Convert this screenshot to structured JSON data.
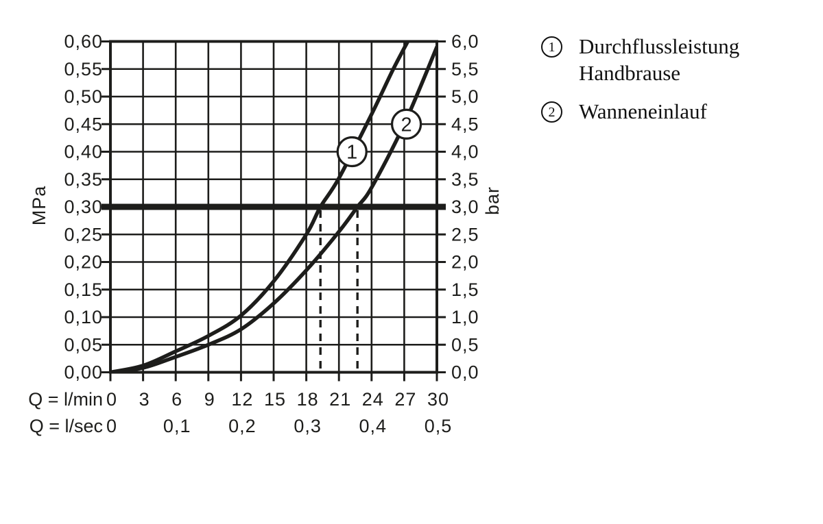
{
  "legend": {
    "items": [
      {
        "symbol": "1",
        "line1": "Durchflussleistung",
        "line2": "Handbrause"
      },
      {
        "symbol": "2",
        "line1": "Wanneneinlauf",
        "line2": ""
      }
    ]
  },
  "chart_data": {
    "type": "line",
    "title": "",
    "grid": true,
    "x_axis": {
      "primary_label": "Q = l/min",
      "primary_ticks": [
        "0",
        "3",
        "6",
        "9",
        "12",
        "15",
        "18",
        "21",
        "24",
        "27",
        "30"
      ],
      "primary_tick_values_lmin": [
        0,
        3,
        6,
        9,
        12,
        15,
        18,
        21,
        24,
        27,
        30
      ],
      "secondary_label": "Q = l/sec",
      "secondary_ticks": [
        "0",
        "0,1",
        "0,2",
        "0,3",
        "0,4",
        "0,5"
      ],
      "secondary_tick_values_lmin": [
        0,
        6,
        12,
        18,
        24,
        30
      ],
      "range_lmin": [
        0,
        30
      ]
    },
    "y_axis_left": {
      "unit": "MPa",
      "ticks": [
        "0,60",
        "0,55",
        "0,50",
        "0,45",
        "0,40",
        "0,35",
        "0,30",
        "0,25",
        "0,20",
        "0,15",
        "0,10",
        "0,05",
        "0,00"
      ],
      "tick_values_mpa": [
        0.6,
        0.55,
        0.5,
        0.45,
        0.4,
        0.35,
        0.3,
        0.25,
        0.2,
        0.15,
        0.1,
        0.05,
        0.0
      ],
      "range_mpa": [
        0,
        0.6
      ]
    },
    "y_axis_right": {
      "unit": "bar",
      "ticks": [
        "6,0",
        "5,5",
        "5,0",
        "4,5",
        "4,0",
        "3,5",
        "3,0",
        "2,5",
        "2,0",
        "1,5",
        "1,0",
        "0,5",
        "0,0"
      ],
      "range_bar": [
        0,
        6
      ]
    },
    "series": [
      {
        "name": "Durchflussleistung Handbrause",
        "marker": "1",
        "marker_at": {
          "q_lmin": 22.2,
          "p_mpa": 0.4
        },
        "points_lmin_mpa": [
          [
            0,
            0
          ],
          [
            3,
            0.012
          ],
          [
            6,
            0.038
          ],
          [
            9,
            0.066
          ],
          [
            12,
            0.103
          ],
          [
            15,
            0.165
          ],
          [
            18,
            0.25
          ],
          [
            19.3,
            0.3
          ],
          [
            21,
            0.352
          ],
          [
            24,
            0.468
          ],
          [
            26,
            0.55
          ],
          [
            27.6,
            0.61
          ]
        ]
      },
      {
        "name": "Wanneneinlauf",
        "marker": "2",
        "marker_at": {
          "q_lmin": 27.2,
          "p_mpa": 0.45
        },
        "points_lmin_mpa": [
          [
            0,
            0
          ],
          [
            3,
            0.008
          ],
          [
            6,
            0.028
          ],
          [
            9,
            0.05
          ],
          [
            12,
            0.078
          ],
          [
            15,
            0.125
          ],
          [
            18,
            0.185
          ],
          [
            21,
            0.255
          ],
          [
            22.7,
            0.3
          ],
          [
            24,
            0.335
          ],
          [
            27,
            0.45
          ],
          [
            30,
            0.59
          ]
        ]
      }
    ],
    "reference_line_mpa": 0.3,
    "dashed_guides_lmin": [
      19.3,
      22.7
    ],
    "ink_color": "#1d1d1b"
  }
}
